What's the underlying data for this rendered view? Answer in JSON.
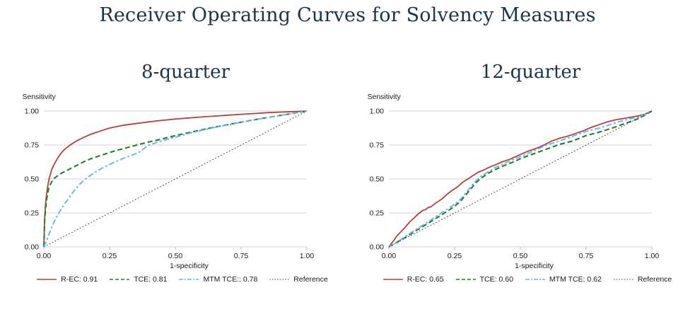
{
  "title": "Receiver Operating Curves for Solvency Measures",
  "colors": {
    "title_text": "#1b3448",
    "r_ec": "#b5413c",
    "tce": "#2d7a33",
    "mtm_tce": "#67b7e8",
    "reference": "#3f3f3f",
    "gridline": "#d6d6d6",
    "tick": "#bdbdbd",
    "label_text": "#1a1a1a"
  },
  "chart_data": [
    {
      "type": "line",
      "title": "8-quarter",
      "ylabel": "Sensitivity",
      "xlabel": "1-specificity",
      "xlim": [
        0,
        1
      ],
      "ylim": [
        0,
        1
      ],
      "xtick_labels": [
        "0.00",
        "0.25",
        "0.50",
        "0.75",
        "1.00"
      ],
      "ytick_labels": [
        "0.00",
        "0.25",
        "0.50",
        "0.75",
        "1.00"
      ],
      "grid": "horizontal",
      "legend_position": "bottom",
      "series": [
        {
          "name": "R-EC: 0.91",
          "color": "#b5413c",
          "dash": "solid",
          "points": [
            [
              0,
              0
            ],
            [
              0.003,
              0.2
            ],
            [
              0.006,
              0.3
            ],
            [
              0.01,
              0.38
            ],
            [
              0.015,
              0.45
            ],
            [
              0.02,
              0.5
            ],
            [
              0.03,
              0.57
            ],
            [
              0.04,
              0.61
            ],
            [
              0.05,
              0.645
            ],
            [
              0.06,
              0.675
            ],
            [
              0.07,
              0.7
            ],
            [
              0.08,
              0.72
            ],
            [
              0.09,
              0.735
            ],
            [
              0.1,
              0.75
            ],
            [
              0.12,
              0.775
            ],
            [
              0.15,
              0.805
            ],
            [
              0.18,
              0.83
            ],
            [
              0.21,
              0.85
            ],
            [
              0.25,
              0.875
            ],
            [
              0.3,
              0.895
            ],
            [
              0.35,
              0.908
            ],
            [
              0.4,
              0.921
            ],
            [
              0.45,
              0.932
            ],
            [
              0.5,
              0.941
            ],
            [
              0.55,
              0.949
            ],
            [
              0.6,
              0.956
            ],
            [
              0.65,
              0.963
            ],
            [
              0.7,
              0.97
            ],
            [
              0.75,
              0.976
            ],
            [
              0.8,
              0.982
            ],
            [
              0.85,
              0.988
            ],
            [
              0.9,
              0.992
            ],
            [
              0.95,
              0.996
            ],
            [
              1,
              1
            ]
          ]
        },
        {
          "name": "TCE: 0.81",
          "color": "#2d7a33",
          "dash": "dashed",
          "points": [
            [
              0,
              0
            ],
            [
              0.003,
              0.18
            ],
            [
              0.006,
              0.27
            ],
            [
              0.01,
              0.34
            ],
            [
              0.015,
              0.4
            ],
            [
              0.02,
              0.44
            ],
            [
              0.03,
              0.48
            ],
            [
              0.04,
              0.505
            ],
            [
              0.05,
              0.52
            ],
            [
              0.06,
              0.535
            ],
            [
              0.08,
              0.555
            ],
            [
              0.1,
              0.575
            ],
            [
              0.12,
              0.595
            ],
            [
              0.15,
              0.625
            ],
            [
              0.18,
              0.65
            ],
            [
              0.2,
              0.663
            ],
            [
              0.22,
              0.675
            ],
            [
              0.25,
              0.695
            ],
            [
              0.28,
              0.712
            ],
            [
              0.3,
              0.722
            ],
            [
              0.33,
              0.738
            ],
            [
              0.36,
              0.753
            ],
            [
              0.4,
              0.773
            ],
            [
              0.44,
              0.79
            ],
            [
              0.48,
              0.81
            ],
            [
              0.52,
              0.828
            ],
            [
              0.56,
              0.845
            ],
            [
              0.6,
              0.862
            ],
            [
              0.65,
              0.882
            ],
            [
              0.7,
              0.9
            ],
            [
              0.75,
              0.918
            ],
            [
              0.8,
              0.936
            ],
            [
              0.85,
              0.952
            ],
            [
              0.9,
              0.968
            ],
            [
              0.95,
              0.984
            ],
            [
              1,
              1
            ]
          ]
        },
        {
          "name": "MTM TCE:: 0.78",
          "color": "#67b7e8",
          "dash": "dashdot",
          "points": [
            [
              0,
              0
            ],
            [
              0.01,
              0.045
            ],
            [
              0.02,
              0.095
            ],
            [
              0.03,
              0.145
            ],
            [
              0.04,
              0.19
            ],
            [
              0.05,
              0.225
            ],
            [
              0.06,
              0.26
            ],
            [
              0.07,
              0.29
            ],
            [
              0.08,
              0.32
            ],
            [
              0.09,
              0.345
            ],
            [
              0.1,
              0.375
            ],
            [
              0.11,
              0.4
            ],
            [
              0.12,
              0.425
            ],
            [
              0.13,
              0.447
            ],
            [
              0.14,
              0.468
            ],
            [
              0.15,
              0.487
            ],
            [
              0.16,
              0.503
            ],
            [
              0.18,
              0.53
            ],
            [
              0.2,
              0.555
            ],
            [
              0.22,
              0.578
            ],
            [
              0.25,
              0.607
            ],
            [
              0.28,
              0.633
            ],
            [
              0.3,
              0.65
            ],
            [
              0.33,
              0.672
            ],
            [
              0.36,
              0.695
            ],
            [
              0.4,
              0.75
            ],
            [
              0.44,
              0.775
            ],
            [
              0.48,
              0.797
            ],
            [
              0.52,
              0.818
            ],
            [
              0.56,
              0.84
            ],
            [
              0.6,
              0.858
            ],
            [
              0.65,
              0.88
            ],
            [
              0.7,
              0.898
            ],
            [
              0.75,
              0.917
            ],
            [
              0.8,
              0.935
            ],
            [
              0.85,
              0.952
            ],
            [
              0.9,
              0.968
            ],
            [
              0.95,
              0.984
            ],
            [
              1,
              1
            ]
          ]
        },
        {
          "name": "Reference",
          "color": "#3f3f3f",
          "dash": "dotted",
          "points": [
            [
              0,
              0
            ],
            [
              1,
              1
            ]
          ]
        }
      ]
    },
    {
      "type": "line",
      "title": "12-quarter",
      "ylabel": "Sensitivity",
      "xlabel": "1-specificity",
      "xlim": [
        0,
        1
      ],
      "ylim": [
        0,
        1
      ],
      "xtick_labels": [
        "0.00",
        "0.25",
        "0.50",
        "0.75",
        "1.00"
      ],
      "ytick_labels": [
        "0.00",
        "0.25",
        "0.50",
        "0.75",
        "1.00"
      ],
      "grid": "horizontal",
      "legend_position": "bottom",
      "series": [
        {
          "name": "R-EC: 0.65",
          "color": "#b5413c",
          "dash": "solid",
          "points": [
            [
              0,
              0
            ],
            [
              0.01,
              0.025
            ],
            [
              0.02,
              0.05
            ],
            [
              0.03,
              0.08
            ],
            [
              0.05,
              0.12
            ],
            [
              0.06,
              0.14
            ],
            [
              0.08,
              0.185
            ],
            [
              0.1,
              0.22
            ],
            [
              0.11,
              0.24
            ],
            [
              0.12,
              0.255
            ],
            [
              0.13,
              0.27
            ],
            [
              0.14,
              0.275
            ],
            [
              0.15,
              0.29
            ],
            [
              0.16,
              0.295
            ],
            [
              0.18,
              0.325
            ],
            [
              0.2,
              0.35
            ],
            [
              0.22,
              0.385
            ],
            [
              0.24,
              0.415
            ],
            [
              0.26,
              0.44
            ],
            [
              0.28,
              0.475
            ],
            [
              0.3,
              0.5
            ],
            [
              0.32,
              0.525
            ],
            [
              0.34,
              0.55
            ],
            [
              0.36,
              0.565
            ],
            [
              0.38,
              0.585
            ],
            [
              0.4,
              0.6
            ],
            [
              0.43,
              0.625
            ],
            [
              0.46,
              0.645
            ],
            [
              0.5,
              0.68
            ],
            [
              0.53,
              0.705
            ],
            [
              0.56,
              0.725
            ],
            [
              0.59,
              0.75
            ],
            [
              0.62,
              0.78
            ],
            [
              0.65,
              0.8
            ],
            [
              0.68,
              0.815
            ],
            [
              0.71,
              0.835
            ],
            [
              0.74,
              0.855
            ],
            [
              0.77,
              0.88
            ],
            [
              0.8,
              0.9
            ],
            [
              0.83,
              0.92
            ],
            [
              0.86,
              0.935
            ],
            [
              0.89,
              0.945
            ],
            [
              0.92,
              0.955
            ],
            [
              0.95,
              0.965
            ],
            [
              0.97,
              0.975
            ],
            [
              1,
              1
            ]
          ]
        },
        {
          "name": "TCE: 0.60",
          "color": "#2d7a33",
          "dash": "dashed",
          "points": [
            [
              0,
              0
            ],
            [
              0.05,
              0.055
            ],
            [
              0.1,
              0.115
            ],
            [
              0.15,
              0.175
            ],
            [
              0.2,
              0.235
            ],
            [
              0.24,
              0.285
            ],
            [
              0.27,
              0.33
            ],
            [
              0.3,
              0.4
            ],
            [
              0.33,
              0.47
            ],
            [
              0.35,
              0.505
            ],
            [
              0.38,
              0.545
            ],
            [
              0.4,
              0.565
            ],
            [
              0.44,
              0.6
            ],
            [
              0.48,
              0.63
            ],
            [
              0.5,
              0.65
            ],
            [
              0.55,
              0.685
            ],
            [
              0.6,
              0.72
            ],
            [
              0.65,
              0.755
            ],
            [
              0.7,
              0.78
            ],
            [
              0.75,
              0.82
            ],
            [
              0.8,
              0.845
            ],
            [
              0.85,
              0.875
            ],
            [
              0.9,
              0.91
            ],
            [
              0.95,
              0.945
            ],
            [
              1,
              1
            ]
          ]
        },
        {
          "name": "MTM TCE: 0.62",
          "color": "#67b7e8",
          "dash": "dashdot",
          "points": [
            [
              0,
              0
            ],
            [
              0.05,
              0.06
            ],
            [
              0.1,
              0.125
            ],
            [
              0.15,
              0.185
            ],
            [
              0.2,
              0.25
            ],
            [
              0.24,
              0.3
            ],
            [
              0.27,
              0.345
            ],
            [
              0.3,
              0.415
            ],
            [
              0.33,
              0.485
            ],
            [
              0.35,
              0.52
            ],
            [
              0.38,
              0.555
            ],
            [
              0.4,
              0.58
            ],
            [
              0.44,
              0.615
            ],
            [
              0.48,
              0.65
            ],
            [
              0.52,
              0.68
            ],
            [
              0.56,
              0.715
            ],
            [
              0.6,
              0.75
            ],
            [
              0.64,
              0.775
            ],
            [
              0.68,
              0.8
            ],
            [
              0.72,
              0.83
            ],
            [
              0.76,
              0.855
            ],
            [
              0.8,
              0.875
            ],
            [
              0.84,
              0.9
            ],
            [
              0.88,
              0.925
            ],
            [
              0.92,
              0.945
            ],
            [
              0.95,
              0.955
            ],
            [
              1,
              1
            ]
          ]
        },
        {
          "name": "Reference",
          "color": "#3f3f3f",
          "dash": "dotted",
          "points": [
            [
              0,
              0
            ],
            [
              1,
              1
            ]
          ]
        }
      ]
    }
  ]
}
